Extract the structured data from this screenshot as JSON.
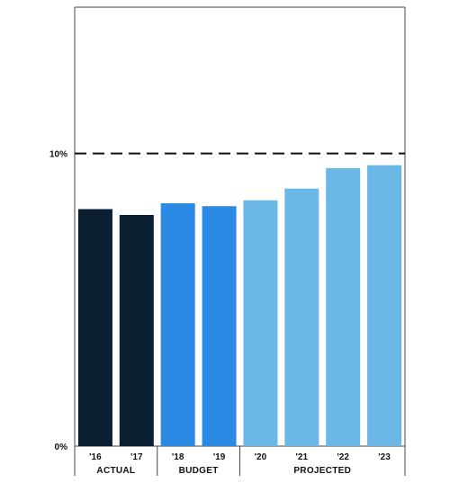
{
  "chart_data": {
    "type": "bar",
    "categories": [
      "'16",
      "'17",
      "'18",
      "'19",
      "'20",
      "'21",
      "'22",
      "'23"
    ],
    "values": [
      8.1,
      7.9,
      8.3,
      8.2,
      8.4,
      8.8,
      9.5,
      9.6
    ],
    "groups": [
      {
        "label": "ACTUAL",
        "count": 2,
        "color": "#0b1f33"
      },
      {
        "label": "BUDGET",
        "count": 2,
        "color": "#2a8ae4"
      },
      {
        "label": "PROJECTED",
        "count": 4,
        "color": "#6bb8e6"
      }
    ],
    "reference_line": {
      "value": 10,
      "label": "10%",
      "style": "dashed"
    },
    "y_ticks": [
      {
        "value": 0,
        "label": "0%"
      },
      {
        "value": 10,
        "label": "10%"
      }
    ],
    "ylim": [
      0,
      15
    ],
    "grid": false,
    "title": "",
    "xlabel": "",
    "ylabel": ""
  }
}
